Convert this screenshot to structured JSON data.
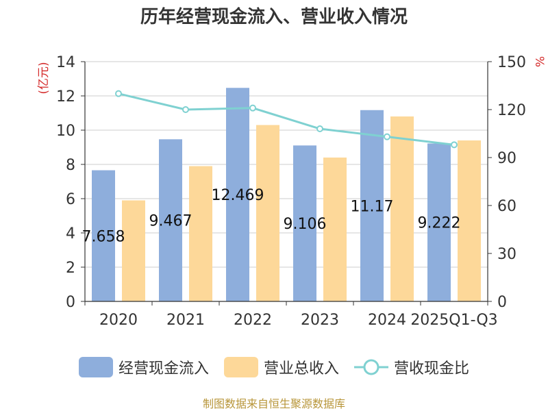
{
  "title": "历年经营现金流入、营业收入情况",
  "footer": "制图数据来自恒生聚源数据库",
  "colors": {
    "cash": "#8eaedc",
    "revenue": "#fdd899",
    "ratio": "#7fd1d1"
  },
  "chart_data": {
    "type": "bar",
    "title": "历年经营现金流入、营业收入情况",
    "categories": [
      "2020",
      "2021",
      "2022",
      "2023",
      "2024",
      "2025Q1-Q3"
    ],
    "y_left_label": "(亿元)",
    "y_right_label": "%",
    "y_left_range": [
      0,
      14
    ],
    "y_left_ticks": [
      "0",
      "2",
      "4",
      "6",
      "8",
      "10",
      "12",
      "14"
    ],
    "y_right_range": [
      0,
      150
    ],
    "y_right_ticks": [
      "0",
      "30",
      "60",
      "90",
      "120",
      "150"
    ],
    "grid": true,
    "legend_position": "bottom",
    "series": [
      {
        "name": "经营现金流入",
        "type": "bar",
        "axis": "left",
        "values": [
          7.658,
          9.467,
          12.469,
          9.106,
          11.17,
          9.222
        ],
        "labels": [
          "7.658",
          "9.467",
          "12.469",
          "9.106",
          "11.17",
          "9.222"
        ]
      },
      {
        "name": "营业总收入",
        "type": "bar",
        "axis": "left",
        "values": [
          5.9,
          7.9,
          10.3,
          8.4,
          10.8,
          9.4
        ]
      },
      {
        "name": "营收现金比",
        "type": "line",
        "axis": "right",
        "values": [
          130,
          120,
          121,
          108,
          103,
          98
        ]
      }
    ]
  }
}
